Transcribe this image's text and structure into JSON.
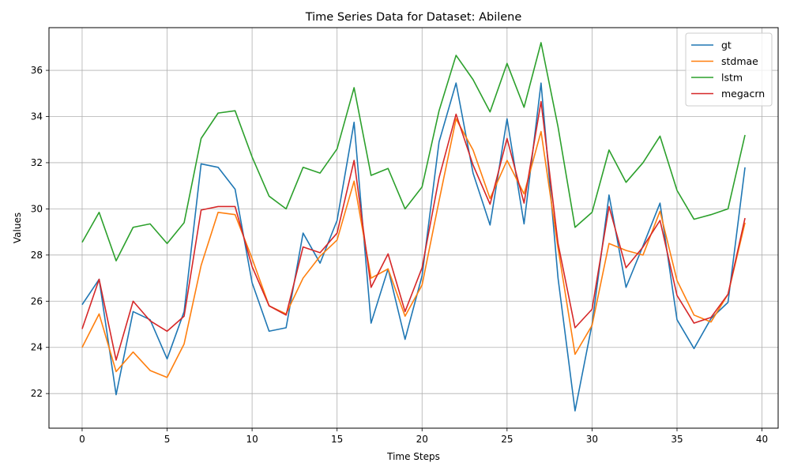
{
  "chart_data": {
    "type": "line",
    "title": "Time Series Data for Dataset: Abilene",
    "xlabel": "Time Steps",
    "ylabel": "Values",
    "xlim": [
      -1.95,
      40.95
    ],
    "ylim": [
      20.5,
      37.85
    ],
    "xticks": [
      0,
      5,
      10,
      15,
      20,
      25,
      30,
      35,
      40
    ],
    "yticks": [
      22,
      24,
      26,
      28,
      30,
      32,
      34,
      36
    ],
    "grid": true,
    "legend_position": "top-right",
    "x": [
      0,
      1,
      2,
      3,
      4,
      5,
      6,
      7,
      8,
      9,
      10,
      11,
      12,
      13,
      14,
      15,
      16,
      17,
      18,
      19,
      20,
      21,
      22,
      23,
      24,
      25,
      26,
      27,
      28,
      29,
      30,
      31,
      32,
      33,
      34,
      35,
      36,
      37,
      38,
      39
    ],
    "series": [
      {
        "name": "gt",
        "color": "#1f77b4",
        "values": [
          25.85,
          26.95,
          21.95,
          25.55,
          25.2,
          23.5,
          25.55,
          31.95,
          31.8,
          30.85,
          26.8,
          24.7,
          24.85,
          28.95,
          27.65,
          29.5,
          33.75,
          25.05,
          27.4,
          24.35,
          27.1,
          32.9,
          35.45,
          31.55,
          29.3,
          33.9,
          29.35,
          35.45,
          27.0,
          21.25,
          25.0,
          30.6,
          26.6,
          28.4,
          30.25,
          25.2,
          23.95,
          25.25,
          25.95,
          31.8
        ]
      },
      {
        "name": "stdmae",
        "color": "#ff7f0e",
        "values": [
          24.0,
          25.45,
          22.95,
          23.8,
          23.0,
          22.7,
          24.15,
          27.55,
          29.85,
          29.75,
          27.85,
          25.8,
          25.45,
          27.0,
          27.95,
          28.65,
          31.2,
          27.0,
          27.4,
          25.35,
          26.7,
          30.35,
          33.9,
          32.55,
          30.45,
          32.1,
          30.65,
          33.35,
          28.3,
          23.7,
          24.95,
          28.5,
          28.2,
          28.0,
          29.9,
          26.9,
          25.4,
          25.1,
          26.3,
          29.4
        ]
      },
      {
        "name": "lstm",
        "color": "#2ca02c",
        "values": [
          28.55,
          29.85,
          27.75,
          29.2,
          29.35,
          28.5,
          29.4,
          33.05,
          34.15,
          34.25,
          32.25,
          30.55,
          30.0,
          31.8,
          31.55,
          32.6,
          35.25,
          31.45,
          31.75,
          30.0,
          30.95,
          34.25,
          36.65,
          35.6,
          34.2,
          36.3,
          34.4,
          37.2,
          33.55,
          29.2,
          29.85,
          32.55,
          31.15,
          32.0,
          33.15,
          30.8,
          29.55,
          29.75,
          30.0,
          33.2
        ]
      },
      {
        "name": "megacrn",
        "color": "#d62728",
        "values": [
          24.8,
          26.95,
          23.45,
          26.0,
          25.15,
          24.7,
          25.35,
          29.95,
          30.1,
          30.1,
          27.5,
          25.8,
          25.4,
          28.35,
          28.1,
          28.95,
          32.1,
          26.6,
          28.05,
          25.55,
          27.45,
          31.35,
          34.1,
          31.9,
          30.2,
          33.05,
          30.25,
          34.65,
          28.5,
          24.85,
          25.65,
          30.1,
          27.45,
          28.35,
          29.5,
          26.25,
          25.05,
          25.3,
          26.3,
          29.6
        ]
      }
    ]
  }
}
